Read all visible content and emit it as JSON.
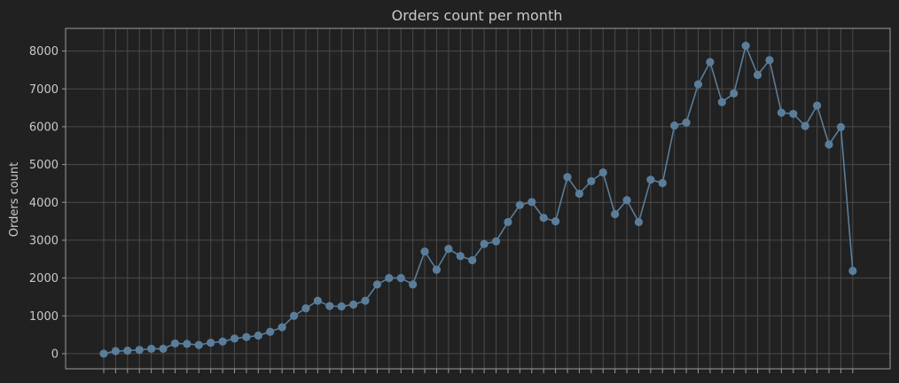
{
  "colors": {
    "background": "#212121",
    "grid": "#4a4a4a",
    "frame": "#9a9a9a",
    "text": "#c9c9c9",
    "series": "#5a7d9a"
  },
  "chart_data": {
    "type": "line",
    "title": "Orders count per month",
    "xlabel": "",
    "ylabel": "Orders count",
    "ylim": [
      -400,
      8600
    ],
    "yticks": [
      0,
      1000,
      2000,
      3000,
      4000,
      5000,
      6000,
      7000,
      8000
    ],
    "grid": true,
    "x_tick_labels_visible": false,
    "series": [
      {
        "marker": "circle",
        "values": [
          0,
          70,
          80,
          100,
          130,
          130,
          270,
          260,
          230,
          290,
          320,
          400,
          440,
          480,
          580,
          700,
          1000,
          1200,
          1400,
          1260,
          1250,
          1300,
          1400,
          1830,
          2000,
          2000,
          1830,
          2700,
          2220,
          2770,
          2580,
          2470,
          2900,
          2970,
          3480,
          3930,
          4010,
          3590,
          3500,
          4670,
          4230,
          4560,
          4790,
          3690,
          4060,
          3480,
          4600,
          4510,
          6030,
          6110,
          7120,
          7710,
          6650,
          6880,
          8140,
          7370,
          7760,
          6370,
          6340,
          6020,
          6560,
          5530,
          5990,
          2190
        ]
      }
    ]
  }
}
